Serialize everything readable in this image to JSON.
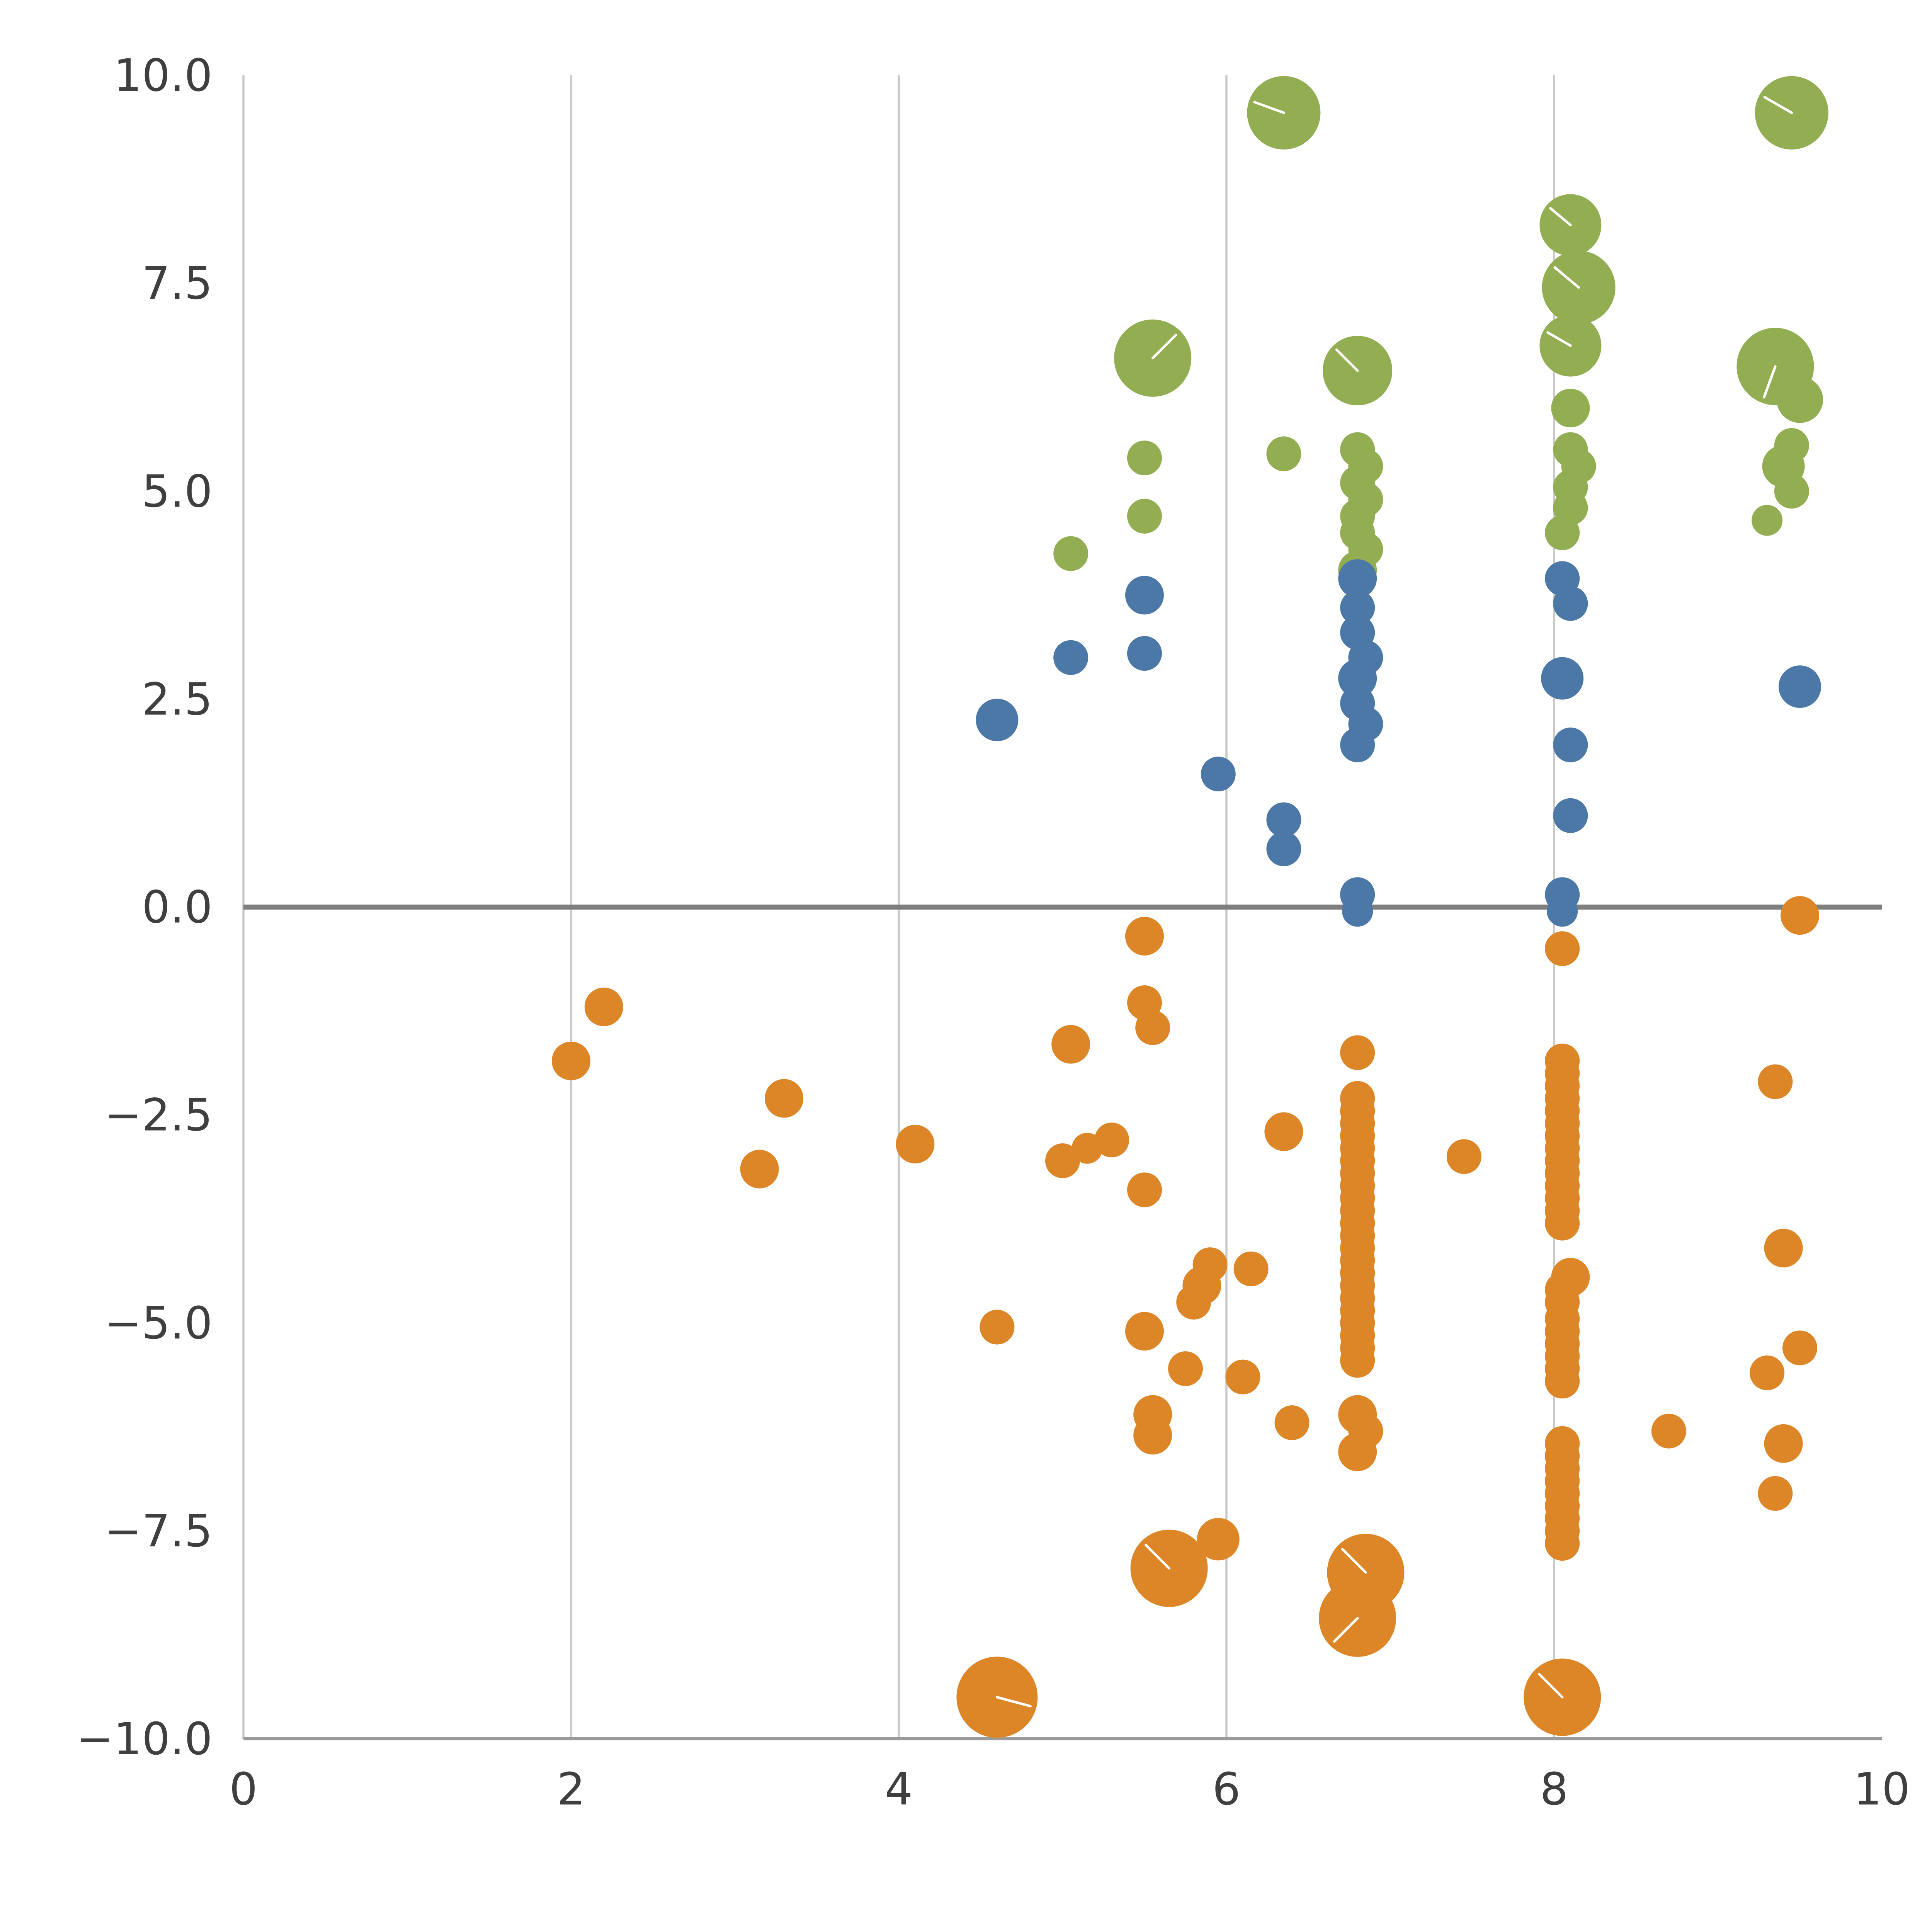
{
  "chart_data": {
    "type": "scatter",
    "title": "",
    "xlabel": "",
    "ylabel": "",
    "xlim": [
      0,
      10
    ],
    "ylim": [
      -10,
      10
    ],
    "grid": {
      "vertical_at": [
        2,
        4,
        6,
        8
      ],
      "horizontal": false,
      "color": "#c9c9c9"
    },
    "zero_line": {
      "y": 0,
      "color": "#7f7f7f"
    },
    "axis": {
      "left_spine_color": "#c9c9c9",
      "bottom_spine_color": "#9b9b9b",
      "tick_label_color": "#3f3f3f"
    },
    "x_ticks": {
      "values": [
        0,
        2,
        4,
        6,
        8,
        10
      ],
      "labels": [
        "0",
        "2",
        "4",
        "6",
        "8",
        "10"
      ]
    },
    "y_ticks": {
      "values": [
        10,
        7.5,
        5,
        2.5,
        0,
        -2.5,
        -5,
        -7.5,
        -10
      ],
      "labels": [
        "10.0",
        "7.5",
        "5.0",
        "2.5",
        "0.0",
        "−2.5",
        "−5.0",
        "−7.5",
        "−10.0"
      ]
    },
    "legend": "none",
    "bubble_highlight_color": "#ffffff",
    "series": [
      {
        "name": "green",
        "color": "#92ad52",
        "points": [
          [
            6.35,
            9.55,
            19,
            160
          ],
          [
            9.45,
            9.55,
            19,
            150
          ],
          [
            8.1,
            8.2,
            16,
            140
          ],
          [
            8.15,
            7.45,
            19,
            140
          ],
          [
            8.1,
            6.75,
            16,
            150
          ],
          [
            5.55,
            6.6,
            20,
            45
          ],
          [
            6.8,
            6.45,
            18,
            135
          ],
          [
            9.35,
            6.5,
            20,
            250
          ],
          [
            9.5,
            6.1,
            12
          ],
          [
            8.1,
            6.0,
            10
          ],
          [
            8.1,
            5.5,
            9
          ],
          [
            8.15,
            5.3,
            9
          ],
          [
            8.1,
            5.05,
            9
          ],
          [
            8.1,
            4.8,
            9
          ],
          [
            8.05,
            4.5,
            9
          ],
          [
            5.5,
            5.4,
            9
          ],
          [
            5.5,
            4.7,
            9
          ],
          [
            6.35,
            5.45,
            9
          ],
          [
            5.05,
            4.25,
            9
          ],
          [
            6.8,
            5.5,
            9
          ],
          [
            6.85,
            5.3,
            9
          ],
          [
            6.8,
            5.1,
            9
          ],
          [
            6.85,
            4.9,
            9
          ],
          [
            6.8,
            4.7,
            9
          ],
          [
            6.8,
            4.5,
            9
          ],
          [
            6.85,
            4.3,
            9
          ],
          [
            6.8,
            4.05,
            10
          ],
          [
            9.4,
            5.3,
            11
          ],
          [
            9.45,
            5.55,
            9
          ],
          [
            9.45,
            5.0,
            9
          ],
          [
            9.3,
            4.65,
            8
          ]
        ]
      },
      {
        "name": "blue",
        "color": "#4c78a8",
        "points": [
          [
            4.6,
            2.25,
            11
          ],
          [
            5.05,
            3.0,
            9
          ],
          [
            5.5,
            3.75,
            10
          ],
          [
            5.5,
            3.05,
            9
          ],
          [
            5.95,
            1.6,
            9
          ],
          [
            6.35,
            1.05,
            9
          ],
          [
            6.35,
            0.7,
            9
          ],
          [
            6.8,
            3.95,
            10
          ],
          [
            6.8,
            3.6,
            9
          ],
          [
            6.8,
            3.3,
            9
          ],
          [
            6.85,
            3.0,
            9
          ],
          [
            6.8,
            2.75,
            10
          ],
          [
            6.8,
            2.45,
            9
          ],
          [
            6.85,
            2.2,
            9
          ],
          [
            6.8,
            1.95,
            9
          ],
          [
            6.8,
            0.15,
            9
          ],
          [
            6.8,
            -0.05,
            8
          ],
          [
            8.05,
            3.95,
            9
          ],
          [
            8.1,
            3.65,
            9
          ],
          [
            8.05,
            2.75,
            11
          ],
          [
            8.1,
            1.95,
            9
          ],
          [
            8.1,
            1.1,
            9
          ],
          [
            8.05,
            0.15,
            9
          ],
          [
            8.05,
            -0.05,
            8
          ],
          [
            9.5,
            2.65,
            11
          ]
        ]
      },
      {
        "name": "orange",
        "color": "#dd8628",
        "points": [
          [
            9.5,
            -0.1,
            10
          ],
          [
            5.5,
            -0.35,
            10
          ],
          [
            8.05,
            -0.5,
            9
          ],
          [
            2.2,
            -1.2,
            10
          ],
          [
            2.0,
            -1.85,
            10
          ],
          [
            5.5,
            -1.15,
            9
          ],
          [
            5.55,
            -1.45,
            9
          ],
          [
            5.05,
            -1.65,
            10
          ],
          [
            6.8,
            -1.75,
            9
          ],
          [
            3.3,
            -2.3,
            10
          ],
          [
            4.1,
            -2.85,
            10
          ],
          [
            3.15,
            -3.15,
            10
          ],
          [
            5.0,
            -3.05,
            9
          ],
          [
            5.15,
            -2.9,
            8
          ],
          [
            5.3,
            -2.8,
            9
          ],
          [
            6.35,
            -2.7,
            10
          ],
          [
            7.45,
            -3.0,
            9
          ],
          [
            5.5,
            -3.4,
            9
          ],
          [
            5.9,
            -4.3,
            9
          ],
          [
            6.15,
            -4.35,
            9
          ],
          [
            5.85,
            -4.55,
            10
          ],
          [
            5.8,
            -4.75,
            9
          ],
          [
            4.6,
            -5.05,
            9
          ],
          [
            5.5,
            -5.1,
            10
          ],
          [
            5.75,
            -5.55,
            9
          ],
          [
            6.1,
            -5.65,
            9
          ],
          [
            5.55,
            -6.1,
            10
          ],
          [
            5.55,
            -6.35,
            10
          ],
          [
            6.4,
            -6.2,
            9
          ],
          [
            6.8,
            -6.1,
            10
          ],
          [
            6.85,
            -6.3,
            9
          ],
          [
            6.8,
            -6.55,
            10
          ],
          [
            6.8,
            -2.3,
            9
          ],
          [
            6.8,
            -2.45,
            9
          ],
          [
            6.8,
            -2.6,
            9
          ],
          [
            6.8,
            -2.75,
            9
          ],
          [
            6.8,
            -2.9,
            9
          ],
          [
            6.8,
            -3.05,
            9
          ],
          [
            6.8,
            -3.2,
            9
          ],
          [
            6.8,
            -3.35,
            9
          ],
          [
            6.8,
            -3.5,
            9
          ],
          [
            6.8,
            -3.65,
            9
          ],
          [
            6.8,
            -3.8,
            9
          ],
          [
            6.8,
            -3.95,
            9
          ],
          [
            6.8,
            -4.1,
            9
          ],
          [
            6.8,
            -4.25,
            9
          ],
          [
            6.8,
            -4.4,
            9
          ],
          [
            6.8,
            -4.55,
            9
          ],
          [
            6.8,
            -4.7,
            9
          ],
          [
            6.8,
            -4.85,
            9
          ],
          [
            6.8,
            -5.0,
            9
          ],
          [
            6.8,
            -5.15,
            9
          ],
          [
            6.8,
            -5.3,
            9
          ],
          [
            6.8,
            -5.45,
            9
          ],
          [
            8.05,
            -1.85,
            9
          ],
          [
            8.05,
            -2.0,
            9
          ],
          [
            8.05,
            -2.15,
            9
          ],
          [
            8.05,
            -2.3,
            9
          ],
          [
            8.05,
            -2.45,
            9
          ],
          [
            8.05,
            -2.6,
            9
          ],
          [
            8.05,
            -2.75,
            9
          ],
          [
            8.05,
            -2.9,
            9
          ],
          [
            8.05,
            -3.05,
            9
          ],
          [
            8.05,
            -3.2,
            9
          ],
          [
            8.05,
            -3.35,
            9
          ],
          [
            8.05,
            -3.5,
            9
          ],
          [
            8.05,
            -3.65,
            9
          ],
          [
            8.05,
            -3.8,
            9
          ],
          [
            8.1,
            -4.45,
            10
          ],
          [
            8.05,
            -4.6,
            9
          ],
          [
            8.05,
            -4.75,
            9
          ],
          [
            8.05,
            -4.95,
            9
          ],
          [
            8.05,
            -5.1,
            9
          ],
          [
            8.05,
            -5.25,
            9
          ],
          [
            8.05,
            -5.4,
            9
          ],
          [
            8.05,
            -5.55,
            9
          ],
          [
            8.05,
            -5.7,
            9
          ],
          [
            8.05,
            -6.45,
            9
          ],
          [
            8.05,
            -6.6,
            9
          ],
          [
            8.05,
            -6.75,
            9
          ],
          [
            8.05,
            -6.9,
            9
          ],
          [
            8.05,
            -7.05,
            9
          ],
          [
            8.05,
            -7.2,
            9
          ],
          [
            8.05,
            -7.35,
            9
          ],
          [
            8.05,
            -7.5,
            9
          ],
          [
            8.05,
            -7.65,
            9
          ],
          [
            8.7,
            -6.3,
            9
          ],
          [
            9.35,
            -2.1,
            9
          ],
          [
            9.4,
            -4.1,
            10
          ],
          [
            9.5,
            -5.3,
            9
          ],
          [
            9.3,
            -5.6,
            9
          ],
          [
            9.4,
            -6.45,
            10
          ],
          [
            9.35,
            -7.05,
            9
          ],
          [
            5.95,
            -7.6,
            11
          ],
          [
            5.65,
            -7.95,
            20,
            135
          ],
          [
            6.85,
            -8.0,
            20,
            135
          ],
          [
            6.8,
            -8.55,
            20,
            225
          ],
          [
            4.6,
            -9.5,
            21,
            345
          ],
          [
            8.05,
            -9.5,
            20,
            135
          ]
        ]
      }
    ]
  }
}
